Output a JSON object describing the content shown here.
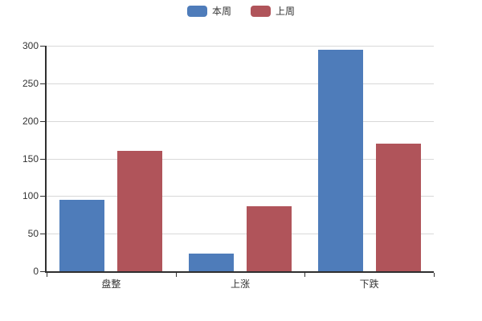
{
  "chart_data": {
    "type": "bar",
    "title": "",
    "xlabel": "",
    "ylabel": "",
    "categories": [
      "盘整",
      "上涨",
      "下跌"
    ],
    "series": [
      {
        "name": "本周",
        "color": "#4e7cba",
        "values": [
          95,
          24,
          295
        ]
      },
      {
        "name": "上周",
        "color": "#b0545a",
        "values": [
          160,
          87,
          170
        ]
      }
    ],
    "ylim": [
      0,
      300
    ],
    "ytick_step": 50,
    "yticks": [
      0,
      50,
      100,
      150,
      200,
      250,
      300
    ],
    "grid": true,
    "legend_position": "top-center"
  },
  "colors": {
    "background": "#ffffff",
    "axis_line": "#2f2f2f",
    "grid_line": "#d8d8d8",
    "text": "#333333"
  }
}
